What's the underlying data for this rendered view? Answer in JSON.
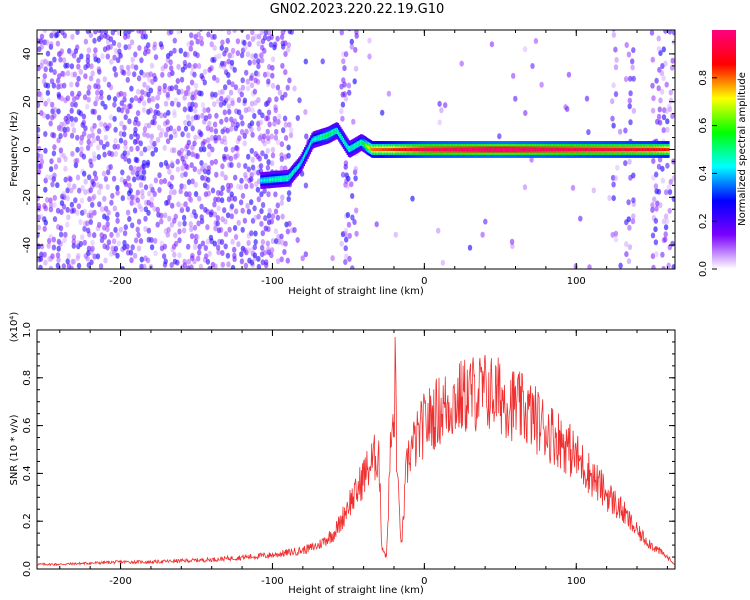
{
  "title": "GN02.2023.220.22.19.G10",
  "chart_data": [
    {
      "type": "heatmap",
      "xlabel": "Height of straight line (km)",
      "ylabel": "Frequency (Hz)",
      "xlim": [
        -255,
        165
      ],
      "ylim": [
        -50,
        50
      ],
      "xticks": [
        -200,
        -100,
        0,
        100
      ],
      "yticks": [
        -40,
        -20,
        0,
        20,
        40
      ],
      "colorbar": {
        "label": "Normalized spectral amplitude",
        "range": [
          0,
          1
        ],
        "ticks": [
          "0.0",
          "0.2",
          "0.4",
          "0.6",
          "0.8"
        ],
        "tick_values": [
          0,
          0.2,
          0.4,
          0.6,
          0.8
        ],
        "colors": [
          "#ffffff",
          "#7b00ff",
          "#0000ff",
          "#00ffff",
          "#00ff00",
          "#ffff00",
          "#ff0000",
          "#ff0080"
        ]
      },
      "ridge": [
        {
          "x": -108,
          "freq": -13,
          "amp": 0.45
        },
        {
          "x": -90,
          "freq": -12,
          "amp": 0.5
        },
        {
          "x": -82,
          "freq": -6,
          "amp": 0.45
        },
        {
          "x": -74,
          "freq": 4,
          "amp": 0.45
        },
        {
          "x": -64,
          "freq": 6,
          "amp": 0.55
        },
        {
          "x": -58,
          "freq": 8,
          "amp": 0.5
        },
        {
          "x": -50,
          "freq": 0,
          "amp": 0.5
        },
        {
          "x": -42,
          "freq": 3,
          "amp": 0.5
        },
        {
          "x": -35,
          "freq": 0,
          "amp": 0.8
        },
        {
          "x": -20,
          "freq": 0,
          "amp": 0.85
        },
        {
          "x": 0,
          "freq": 0,
          "amp": 0.95
        },
        {
          "x": 50,
          "freq": 0,
          "amp": 1.0
        },
        {
          "x": 100,
          "freq": 0,
          "amp": 0.95
        },
        {
          "x": 150,
          "freq": 0,
          "amp": 0.9
        },
        {
          "x": 160,
          "freq": 0,
          "amp": 0.85
        }
      ]
    },
    {
      "type": "line",
      "xlabel": "Height of straight line (km)",
      "ylabel": "SNR (10 * v/v)",
      "yscale_label": "(x10⁴)",
      "xlim": [
        -255,
        165
      ],
      "ylim": [
        0,
        1.0
      ],
      "xticks": [
        -200,
        -100,
        0,
        100
      ],
      "yticks": [
        "0.0",
        "0.2",
        "0.4",
        "0.6",
        "0.8",
        "1.0"
      ],
      "ytick_values": [
        0,
        0.2,
        0.4,
        0.6,
        0.8,
        1.0
      ],
      "series": [
        {
          "color": "#f03030",
          "x": [
            -255,
            -240,
            -220,
            -200,
            -180,
            -160,
            -140,
            -120,
            -100,
            -90,
            -80,
            -70,
            -60,
            -55,
            -50,
            -45,
            -40,
            -35,
            -30,
            -28,
            -25,
            -22,
            -20,
            -19,
            -18,
            -15,
            -12,
            -10,
            -5,
            0,
            10,
            20,
            30,
            40,
            50,
            60,
            70,
            80,
            90,
            100,
            110,
            120,
            130,
            140,
            150,
            160,
            165
          ],
          "values": [
            0.02,
            0.02,
            0.025,
            0.03,
            0.03,
            0.035,
            0.04,
            0.05,
            0.06,
            0.07,
            0.08,
            0.1,
            0.15,
            0.2,
            0.28,
            0.32,
            0.4,
            0.45,
            0.5,
            0.1,
            0.05,
            0.55,
            0.6,
            0.9,
            0.4,
            0.1,
            0.4,
            0.5,
            0.55,
            0.62,
            0.68,
            0.72,
            0.75,
            0.76,
            0.74,
            0.7,
            0.66,
            0.6,
            0.55,
            0.48,
            0.4,
            0.32,
            0.25,
            0.16,
            0.1,
            0.05,
            0.02
          ]
        }
      ]
    }
  ]
}
